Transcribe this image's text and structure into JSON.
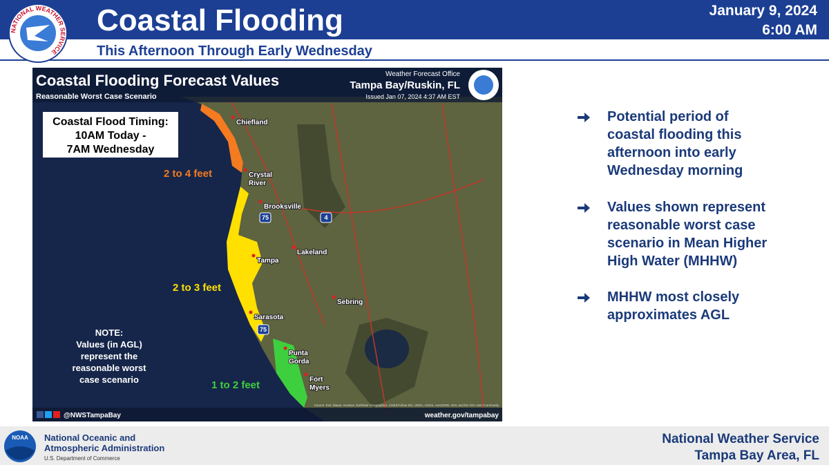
{
  "header": {
    "logo_text": "NATIONAL WEATHER SERVICE",
    "title": "Coastal Flooding",
    "subtitle": "This Afternoon Through Early Wednesday",
    "date": "January 9, 2024",
    "time": "6:00 AM"
  },
  "map": {
    "title": "Coastal Flooding Forecast Values",
    "subtitle": "Reasonable Worst Case Scenario",
    "office": "Weather Forecast Office",
    "office_name": "Tampa Bay/Ruskin, FL",
    "issued": "Issued Jan 07, 2024 4:37 AM EST",
    "timing": [
      "Coastal Flood Timing:",
      "10AM Today -",
      "7AM Wednesday"
    ],
    "zones": [
      "2 to 4 feet",
      "2 to 3 feet",
      "1 to 2 feet"
    ],
    "cities": [
      [
        "Chiefland"
      ],
      [
        "Crystal",
        "River"
      ],
      [
        "Brooksville"
      ],
      [
        "Lakeland"
      ],
      [
        "Tampa"
      ],
      [
        "Sebring"
      ],
      [
        "Sarasota"
      ],
      [
        "Punta",
        "Gorda"
      ],
      [
        "Fort",
        "Myers"
      ]
    ],
    "shields": [
      "75",
      "4",
      "75"
    ],
    "note": [
      "NOTE:",
      "Values (in AGL)",
      "represent the",
      "reasonable worst",
      "case scenario"
    ],
    "social": "@NWSTampaBay",
    "website": "weather.gov/tampabay",
    "attribution": "Source: Esri, Maxar, GeoEye, Earthstar Geographics, CNES/Airbus DS, USDA, USGS, AeroGRID, IGN, and the GIS User Community"
  },
  "bullets": [
    [
      "Potential period of",
      "coastal flooding this",
      "afternoon into early",
      "Wednesday morning"
    ],
    [
      "Values shown represent",
      "reasonable worst case",
      "scenario in Mean Higher",
      "High Water (MHHW)"
    ],
    [
      "MHHW most closely",
      "approximates AGL"
    ]
  ],
  "footer": {
    "noaa_logo": "NOAA",
    "agency": [
      "National Oceanic and",
      "Atmospheric Administration"
    ],
    "department": "U.S. Department of Commerce",
    "office": [
      "National Weather Service",
      "Tampa Bay Area, FL"
    ]
  }
}
